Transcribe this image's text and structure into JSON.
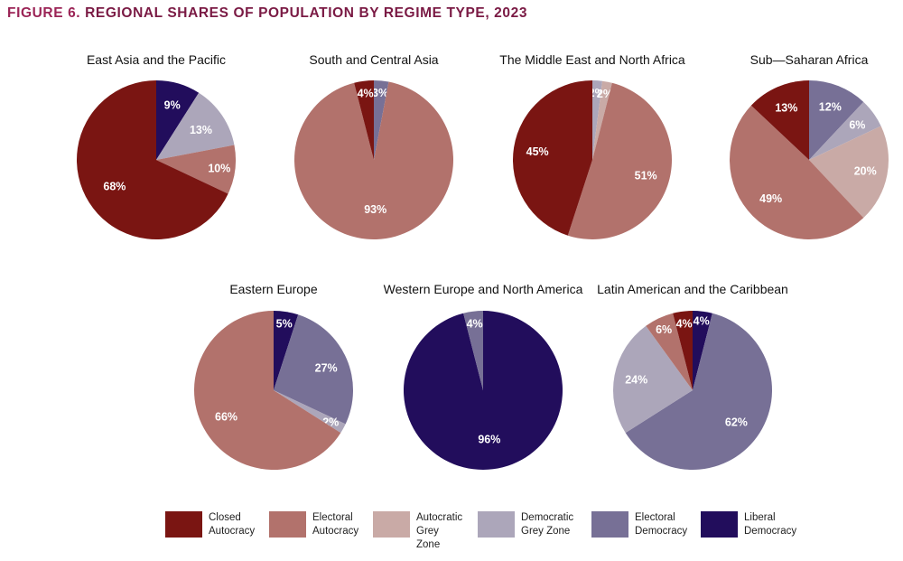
{
  "figure": {
    "number_label": "FIGURE 6.",
    "title": "REGIONAL SHARES OF POPULATION BY REGIME TYPE, 2023"
  },
  "colors": {
    "Closed Autocracy": "#7a1512",
    "Electoral Autocracy": "#b2726c",
    "Autocratic Grey Zone": "#c9aaa6",
    "Democratic Grey Zone": "#aca6ba",
    "Electoral Democracy": "#777096",
    "Liberal Democracy": "#220d5c"
  },
  "legend": [
    {
      "key": "Closed Autocracy",
      "label": "Closed\nAutocracy"
    },
    {
      "key": "Electoral Autocracy",
      "label": "Electoral\nAutocracy"
    },
    {
      "key": "Autocratic Grey Zone",
      "label": "Autocratic\nGrey Zone"
    },
    {
      "key": "Democratic Grey Zone",
      "label": "Democratic\nGrey Zone"
    },
    {
      "key": "Electoral Democracy",
      "label": "Electoral\nDemocracy"
    },
    {
      "key": "Liberal Democracy",
      "label": "Liberal\nDemocracy"
    }
  ],
  "chart_data": [
    {
      "type": "pie",
      "title": "East Asia and the Pacific",
      "slices": [
        {
          "category": "Liberal Democracy",
          "value": 9,
          "label": "9%"
        },
        {
          "category": "Democratic Grey Zone",
          "value": 13,
          "label": "13%"
        },
        {
          "category": "Electoral Autocracy",
          "value": 10,
          "label": "10%"
        },
        {
          "category": "Closed Autocracy",
          "value": 68,
          "label": "68%"
        }
      ]
    },
    {
      "type": "pie",
      "title": "South and Central Asia",
      "slices": [
        {
          "category": "Electoral Democracy",
          "value": 3,
          "label": "3%"
        },
        {
          "category": "Electoral Autocracy",
          "value": 93,
          "label": "93%"
        },
        {
          "category": "Closed Autocracy",
          "value": 4,
          "label": "4%"
        }
      ]
    },
    {
      "type": "pie",
      "title": "The Middle East and North Africa",
      "slices": [
        {
          "category": "Democratic Grey Zone",
          "value": 2,
          "label": "2%"
        },
        {
          "category": "Autocratic Grey Zone",
          "value": 2,
          "label": "2%"
        },
        {
          "category": "Electoral Autocracy",
          "value": 51,
          "label": "51%"
        },
        {
          "category": "Closed Autocracy",
          "value": 45,
          "label": "45%"
        }
      ]
    },
    {
      "type": "pie",
      "title": "Sub—Saharan Africa",
      "slices": [
        {
          "category": "Liberal Democracy",
          "value": 0,
          "label": "0%"
        },
        {
          "category": "Electoral Democracy",
          "value": 12,
          "label": "12%"
        },
        {
          "category": "Democratic Grey Zone",
          "value": 6,
          "label": "6%"
        },
        {
          "category": "Autocratic Grey Zone",
          "value": 20,
          "label": "20%"
        },
        {
          "category": "Electoral Autocracy",
          "value": 49,
          "label": "49%"
        },
        {
          "category": "Closed Autocracy",
          "value": 13,
          "label": "13%"
        }
      ]
    },
    {
      "type": "pie",
      "title": "Eastern Europe",
      "slices": [
        {
          "category": "Liberal Democracy",
          "value": 5,
          "label": "5%"
        },
        {
          "category": "Electoral Democracy",
          "value": 27,
          "label": "27%"
        },
        {
          "category": "Democratic Grey Zone",
          "value": 2,
          "label": "2%"
        },
        {
          "category": "Electoral Autocracy",
          "value": 66,
          "label": "66%"
        }
      ]
    },
    {
      "type": "pie",
      "title": "Western Europe and North America",
      "slices": [
        {
          "category": "Liberal Democracy",
          "value": 96,
          "label": "96%"
        },
        {
          "category": "Electoral Democracy",
          "value": 4,
          "label": "4%"
        }
      ]
    },
    {
      "type": "pie",
      "title": "Latin American and the Caribbean",
      "slices": [
        {
          "category": "Liberal Democracy",
          "value": 4,
          "label": "4%"
        },
        {
          "category": "Electoral Democracy",
          "value": 62,
          "label": "62%"
        },
        {
          "category": "Democratic Grey Zone",
          "value": 24,
          "label": "24%"
        },
        {
          "category": "Electoral Autocracy",
          "value": 6,
          "label": "6%"
        },
        {
          "category": "Closed Autocracy",
          "value": 4,
          "label": "4%"
        }
      ]
    }
  ]
}
